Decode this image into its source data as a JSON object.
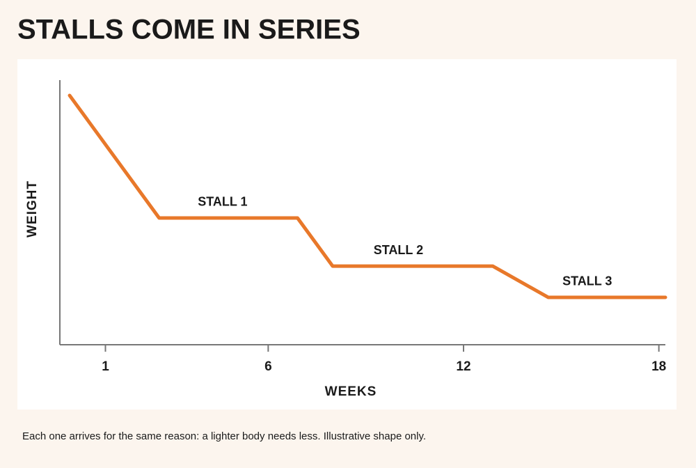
{
  "chart_data": {
    "type": "line",
    "title": "STALLS COME IN SERIES",
    "x_label": "WEEKS",
    "y_label": "WEIGHT",
    "caption": "Each one arrives for the same reason: a lighter body needs less. Illustrative shape only.",
    "x": [
      -0.1,
      2.65,
      6.9,
      7.98,
      12.9,
      14.6,
      18.2
    ],
    "series": [
      {
        "name": "Weight",
        "color": "#e8782a",
        "values": [
          94.2,
          47.9,
          47.9,
          29.7,
          29.7,
          17.9,
          17.9
        ]
      }
    ],
    "xlim": [
      -0.4,
      18.2
    ],
    "xticks": [
      1,
      6,
      12,
      18
    ],
    "ylim": [
      0,
      100
    ],
    "annotations": [
      {
        "text": "STALL 1",
        "x": 4.6,
        "y": 47.9
      },
      {
        "text": "STALL 2",
        "x": 10.0,
        "y": 29.7
      },
      {
        "text": "STALL 3",
        "x": 15.8,
        "y": 17.9
      }
    ]
  }
}
